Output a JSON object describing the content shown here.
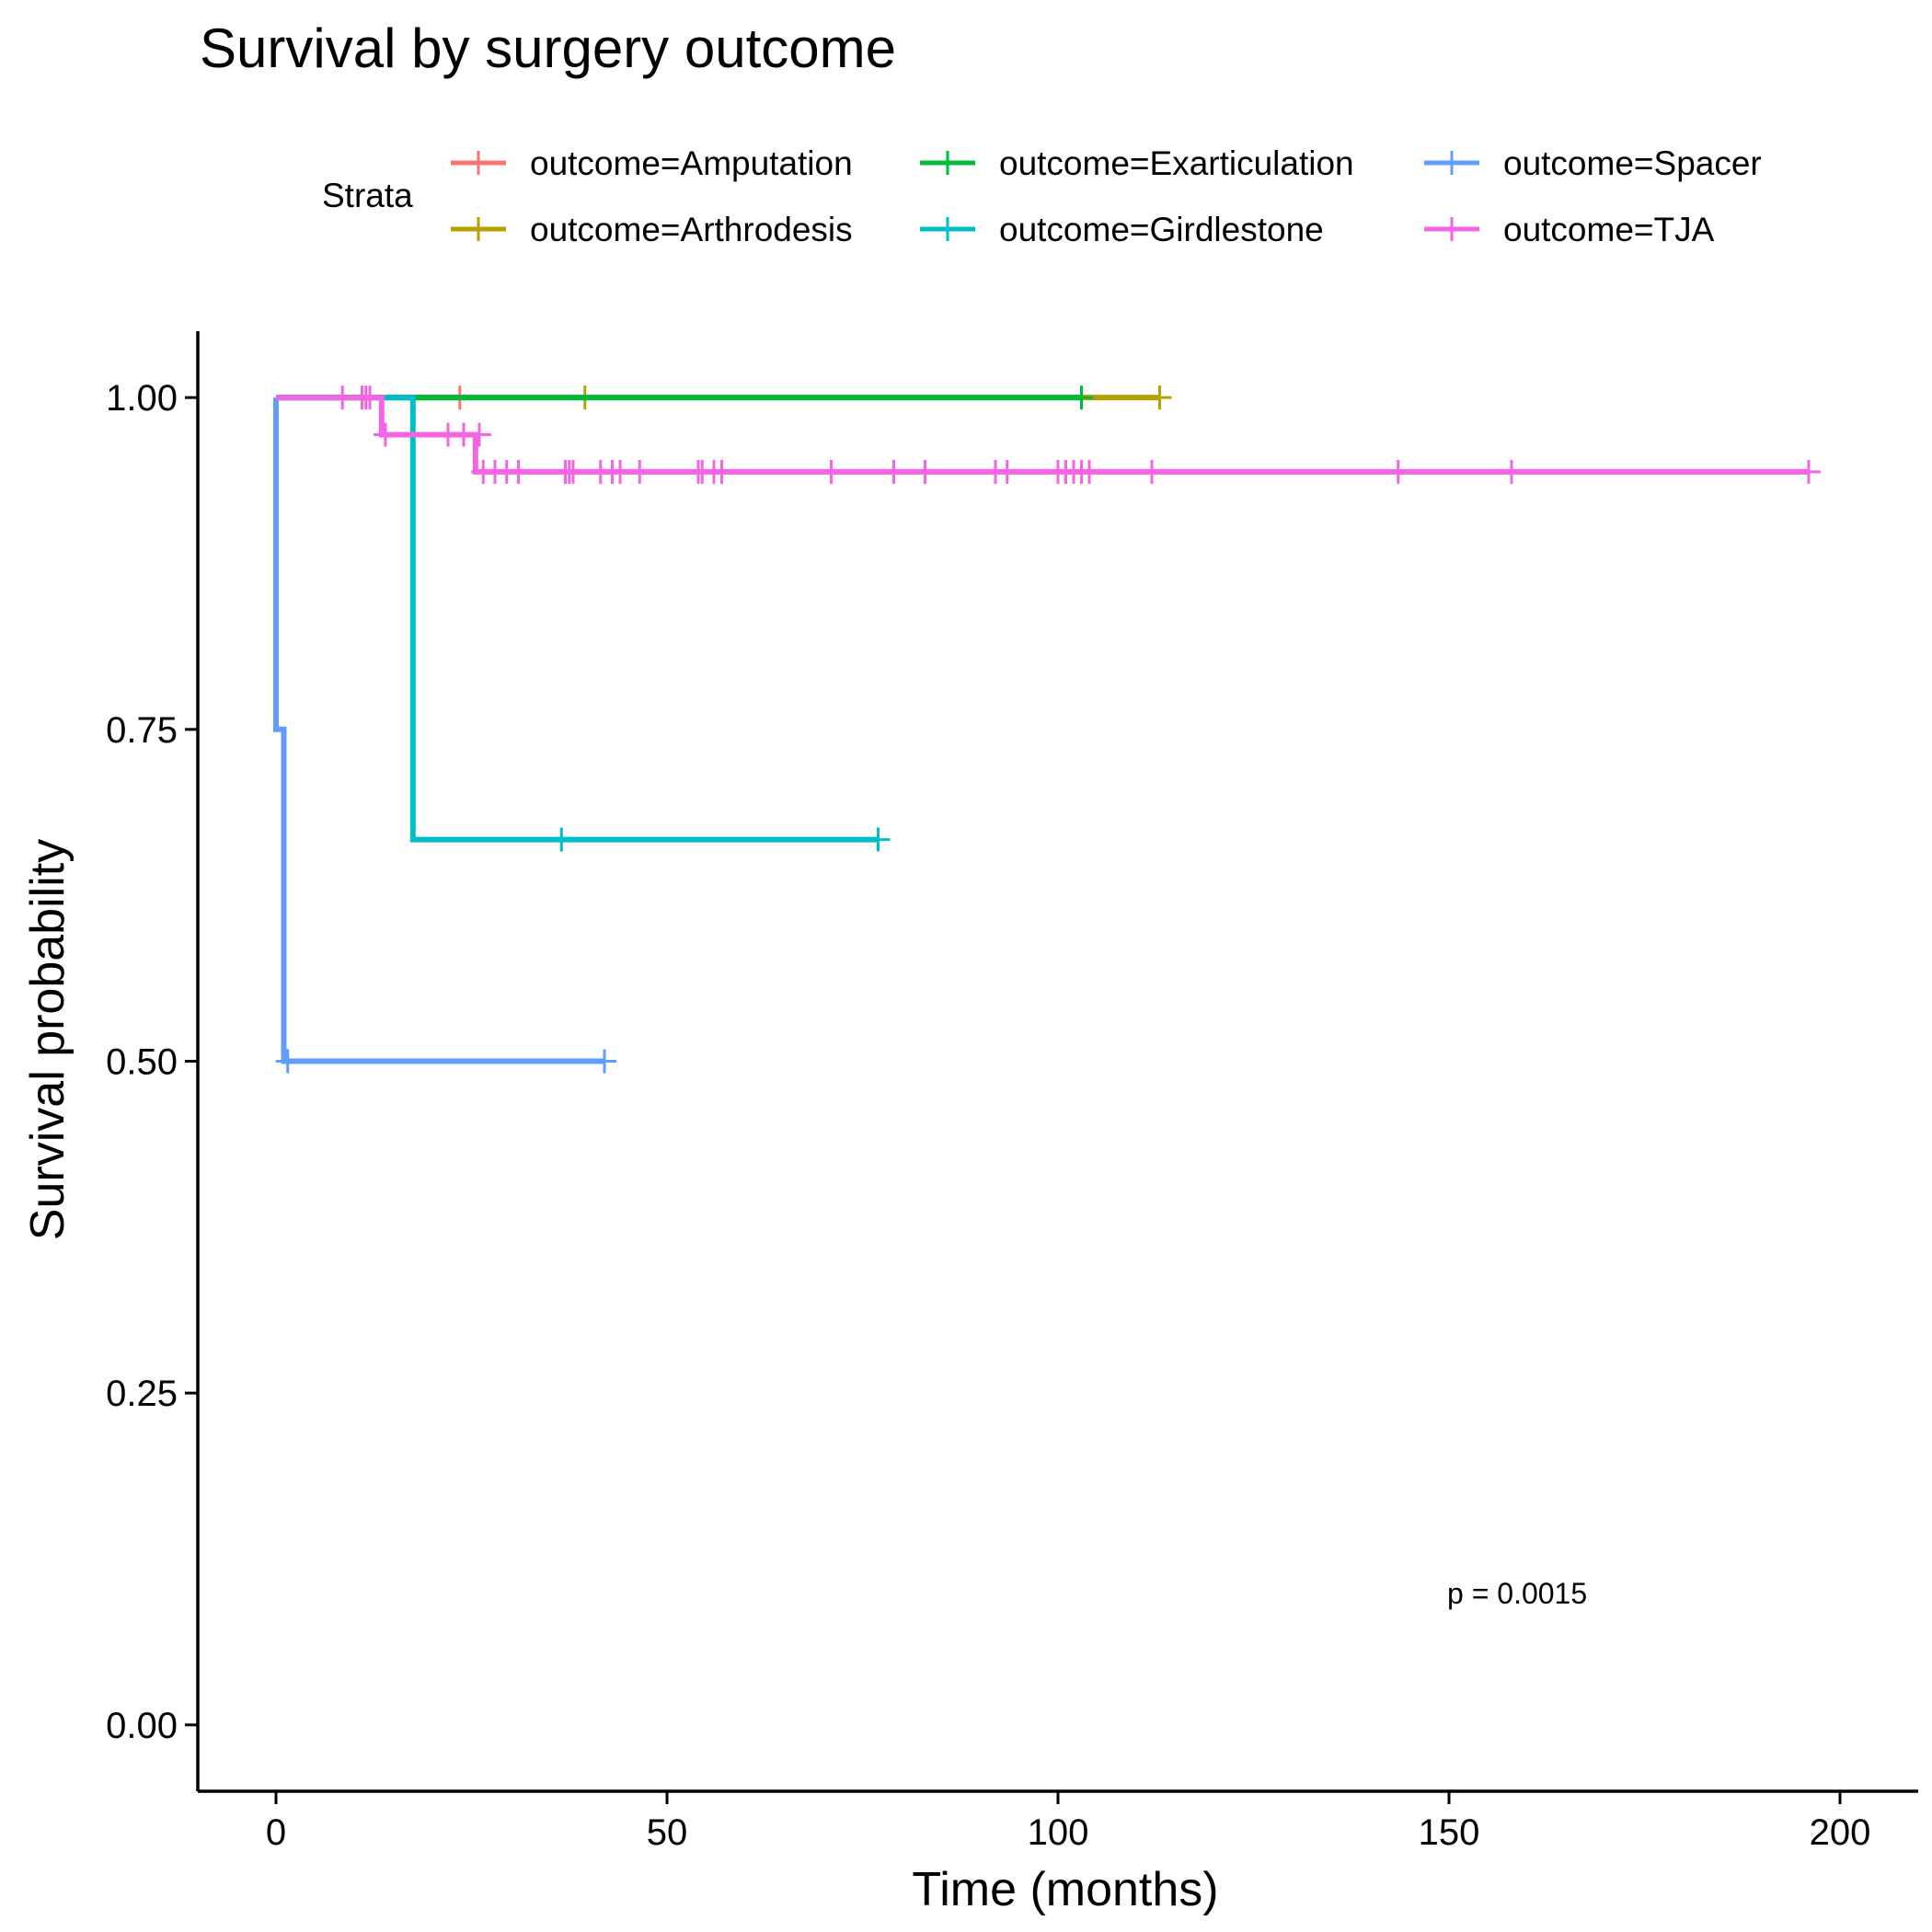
{
  "chart_data": {
    "type": "line",
    "subtype": "kaplan-meier",
    "title": "Survival by surgery outcome",
    "xlabel": "Time (months)",
    "ylabel": "Survival probability",
    "xlim": [
      -10,
      210
    ],
    "ylim": [
      -0.05,
      1.05
    ],
    "x_ticks": [
      0,
      50,
      100,
      150,
      200
    ],
    "y_ticks": [
      0,
      0.25,
      0.5,
      0.75,
      1.0
    ],
    "x_tick_labels": [
      "0",
      "50",
      "100",
      "150",
      "200"
    ],
    "y_tick_labels": [
      "0.00",
      "0.25",
      "0.50",
      "0.75",
      "1.00"
    ],
    "grid": false,
    "legend": {
      "title": "Strata",
      "position": "top",
      "items": [
        "outcome=Amputation",
        "outcome=Arthrodesis",
        "outcome=Exarticulation",
        "outcome=Girdlestone",
        "outcome=Spacer",
        "outcome=TJA"
      ]
    },
    "annotation": "p = 0.0015",
    "series": [
      {
        "name": "outcome=Amputation",
        "color": "#F8766D",
        "steps": [
          [
            0,
            1.0
          ],
          [
            23.5,
            1.0
          ]
        ],
        "censored": [
          [
            23.5,
            1.0
          ]
        ]
      },
      {
        "name": "outcome=Arthrodesis",
        "color": "#B79F00",
        "steps": [
          [
            0,
            1.0
          ],
          [
            113,
            1.0
          ]
        ],
        "censored": [
          [
            39.5,
            1.0
          ],
          [
            113,
            1.0
          ]
        ]
      },
      {
        "name": "outcome=Exarticulation",
        "color": "#00BA38",
        "steps": [
          [
            0,
            1.0
          ],
          [
            103,
            1.0
          ]
        ],
        "censored": [
          [
            103,
            1.0
          ]
        ]
      },
      {
        "name": "outcome=Girdlestone",
        "color": "#00BFC4",
        "steps": [
          [
            0,
            1.0
          ],
          [
            17.5,
            1.0
          ],
          [
            17.5,
            0.667
          ],
          [
            77,
            0.667
          ]
        ],
        "censored": [
          [
            36.5,
            0.667
          ],
          [
            77,
            0.667
          ]
        ]
      },
      {
        "name": "outcome=Spacer",
        "color": "#619CFF",
        "steps": [
          [
            0,
            1.0
          ],
          [
            0,
            0.75
          ],
          [
            1,
            0.75
          ],
          [
            1,
            0.5
          ],
          [
            42,
            0.5
          ]
        ],
        "censored": [
          [
            1.5,
            0.5
          ],
          [
            42,
            0.5
          ]
        ]
      },
      {
        "name": "outcome=TJA",
        "color": "#F564E3",
        "steps": [
          [
            0,
            1.0
          ],
          [
            13.5,
            1.0
          ],
          [
            13.5,
            0.972
          ],
          [
            25.5,
            0.972
          ],
          [
            25.5,
            0.944
          ],
          [
            196,
            0.944
          ]
        ],
        "censored": [
          [
            8.5,
            1.0
          ],
          [
            11,
            1.0
          ],
          [
            11.5,
            1.0
          ],
          [
            12,
            1.0
          ],
          [
            14,
            0.972
          ],
          [
            22,
            0.972
          ],
          [
            24,
            0.972
          ],
          [
            26,
            0.972
          ],
          [
            26.5,
            0.944
          ],
          [
            28,
            0.944
          ],
          [
            29.5,
            0.944
          ],
          [
            31,
            0.944
          ],
          [
            37,
            0.944
          ],
          [
            37.5,
            0.944
          ],
          [
            38,
            0.944
          ],
          [
            41.5,
            0.944
          ],
          [
            43,
            0.944
          ],
          [
            44,
            0.944
          ],
          [
            46.5,
            0.944
          ],
          [
            54,
            0.944
          ],
          [
            54.5,
            0.944
          ],
          [
            56,
            0.944
          ],
          [
            57,
            0.944
          ],
          [
            71,
            0.944
          ],
          [
            79,
            0.944
          ],
          [
            83,
            0.944
          ],
          [
            92,
            0.944
          ],
          [
            93.5,
            0.944
          ],
          [
            100,
            0.944
          ],
          [
            101,
            0.944
          ],
          [
            102,
            0.944
          ],
          [
            103,
            0.944
          ],
          [
            104,
            0.944
          ],
          [
            112,
            0.944
          ],
          [
            143.5,
            0.944
          ],
          [
            158,
            0.944
          ],
          [
            196,
            0.944
          ]
        ]
      }
    ]
  }
}
